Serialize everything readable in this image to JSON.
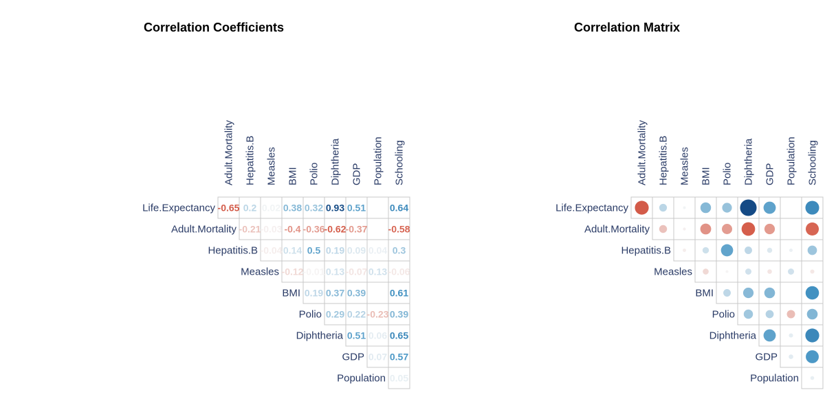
{
  "chart_data": [
    {
      "type": "heatmap",
      "title": "Correlation Coefficients",
      "display": "number",
      "rows": [
        "Life.Expectancy",
        "Adult.Mortality",
        "Hepatitis.B",
        "Measles",
        "BMI",
        "Polio",
        "Diphtheria",
        "GDP",
        "Population"
      ],
      "cols": [
        "Adult.Mortality",
        "Hepatitis.B",
        "Measles",
        "BMI",
        "Polio",
        "Diphtheria",
        "GDP",
        "Population",
        "Schooling"
      ],
      "shape": "upper-triangular",
      "color_scale": {
        "negative": "#c03a2e",
        "zero": "#f7f7f7",
        "positive": "#0a3b78"
      },
      "values": [
        [
          -0.65,
          0.2,
          0.02,
          0.38,
          0.32,
          0.93,
          0.51,
          null,
          0.64
        ],
        [
          null,
          -0.21,
          -0.03,
          -0.4,
          -0.36,
          -0.62,
          -0.37,
          null,
          -0.58
        ],
        [
          null,
          null,
          -0.04,
          0.14,
          0.5,
          0.19,
          0.09,
          0.04,
          0.3
        ],
        [
          null,
          null,
          null,
          -0.12,
          -0.01,
          0.13,
          -0.07,
          0.13,
          -0.06
        ],
        [
          null,
          null,
          null,
          null,
          0.19,
          0.37,
          0.39,
          null,
          0.61
        ],
        [
          null,
          null,
          null,
          null,
          null,
          0.29,
          0.22,
          -0.23,
          0.39
        ],
        [
          null,
          null,
          null,
          null,
          null,
          null,
          0.51,
          0.06,
          0.65
        ],
        [
          null,
          null,
          null,
          null,
          null,
          null,
          null,
          0.07,
          0.57
        ],
        [
          null,
          null,
          null,
          null,
          null,
          null,
          null,
          null,
          0.05
        ]
      ]
    },
    {
      "type": "heatmap",
      "title": "Correlation Matrix",
      "display": "circle",
      "rows": [
        "Life.Expectancy",
        "Adult.Mortality",
        "Hepatitis.B",
        "Measles",
        "BMI",
        "Polio",
        "Diphtheria",
        "GDP",
        "Population"
      ],
      "cols": [
        "Adult.Mortality",
        "Hepatitis.B",
        "Measles",
        "BMI",
        "Polio",
        "Diphtheria",
        "GDP",
        "Population",
        "Schooling"
      ],
      "shape": "upper-triangular",
      "color_scale": {
        "negative": "#c03a2e",
        "zero": "#f7f7f7",
        "positive": "#0a3b78"
      },
      "values": [
        [
          -0.65,
          0.2,
          0.02,
          0.38,
          0.32,
          0.93,
          0.51,
          null,
          0.64
        ],
        [
          null,
          -0.21,
          -0.03,
          -0.4,
          -0.36,
          -0.62,
          -0.37,
          null,
          -0.58
        ],
        [
          null,
          null,
          -0.04,
          0.14,
          0.5,
          0.19,
          0.09,
          0.04,
          0.3
        ],
        [
          null,
          null,
          null,
          -0.12,
          -0.01,
          0.13,
          -0.07,
          0.13,
          -0.06
        ],
        [
          null,
          null,
          null,
          null,
          0.19,
          0.37,
          0.39,
          null,
          0.61
        ],
        [
          null,
          null,
          null,
          null,
          null,
          0.29,
          0.22,
          -0.23,
          0.39
        ],
        [
          null,
          null,
          null,
          null,
          null,
          null,
          0.51,
          0.06,
          0.65
        ],
        [
          null,
          null,
          null,
          null,
          null,
          null,
          null,
          0.07,
          0.57
        ],
        [
          null,
          null,
          null,
          null,
          null,
          null,
          null,
          null,
          0.05
        ]
      ]
    }
  ]
}
